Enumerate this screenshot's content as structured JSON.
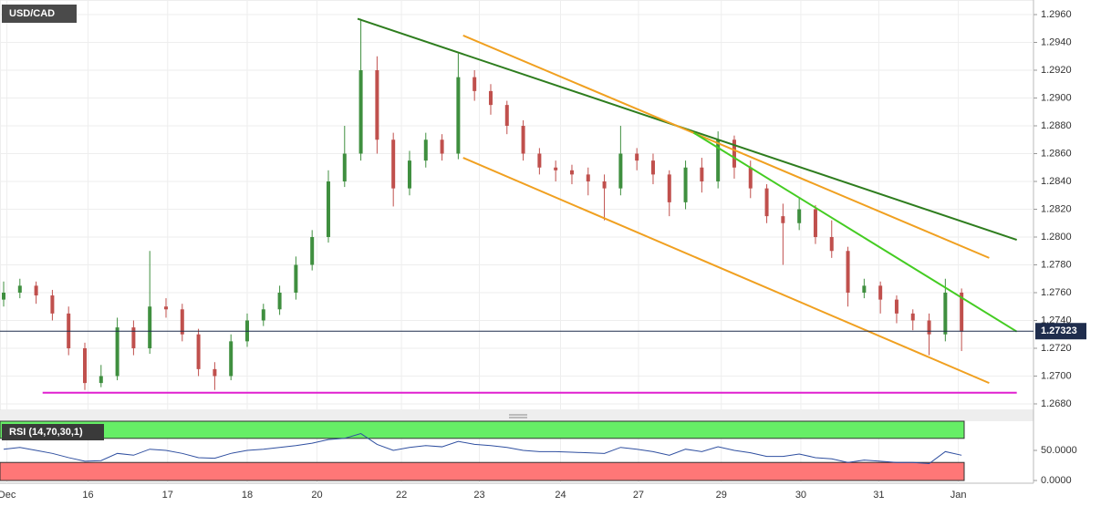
{
  "chart_data": {
    "type": "candlestick",
    "title": "USD/CAD",
    "xlim": [
      -0.225,
      63.43
    ],
    "xticks": [
      {
        "value": 0.2,
        "label": "Dec"
      },
      {
        "value": 5.2,
        "label": "16"
      },
      {
        "value": 10.1,
        "label": "17"
      },
      {
        "value": 15,
        "label": "18"
      },
      {
        "value": 19.3,
        "label": "20"
      },
      {
        "value": 24.5,
        "label": "22"
      },
      {
        "value": 29.3,
        "label": "23"
      },
      {
        "value": 34.3,
        "label": "24"
      },
      {
        "value": 39.1,
        "label": "27"
      },
      {
        "value": 44.2,
        "label": "29"
      },
      {
        "value": 49.1,
        "label": "30"
      },
      {
        "value": 53.9,
        "label": "31"
      },
      {
        "value": 58.8,
        "label": "Jan"
      }
    ],
    "ylim": [
      1.26754,
      1.29705
    ],
    "yticks": [
      {
        "value": 1.268,
        "label": "1.2680"
      },
      {
        "value": 1.27,
        "label": "1.2700"
      },
      {
        "value": 1.272,
        "label": "1.2720"
      },
      {
        "value": 1.274,
        "label": "1.2740"
      },
      {
        "value": 1.276,
        "label": "1.2760"
      },
      {
        "value": 1.278,
        "label": "1.2780"
      },
      {
        "value": 1.28,
        "label": "1.2800"
      },
      {
        "value": 1.282,
        "label": "1.2820"
      },
      {
        "value": 1.284,
        "label": "1.2840"
      },
      {
        "value": 1.286,
        "label": "1.2860"
      },
      {
        "value": 1.288,
        "label": "1.2880"
      },
      {
        "value": 1.29,
        "label": "1.2900"
      },
      {
        "value": 1.292,
        "label": "1.2920"
      },
      {
        "value": 1.294,
        "label": "1.2940"
      },
      {
        "value": 1.296,
        "label": "1.2960"
      }
    ],
    "grid": true,
    "up_color": "#3f8f3f",
    "down_color": "#c0504d",
    "open": [
      1.2755,
      1.276,
      1.2765,
      1.2758,
      1.2745,
      1.272,
      1.2695,
      1.27,
      1.2735,
      1.272,
      1.275,
      1.2748,
      1.273,
      1.2705,
      1.27,
      1.2725,
      1.274,
      1.2748,
      1.276,
      1.278,
      1.28,
      1.284,
      1.286,
      1.292,
      1.287,
      1.2835,
      1.2855,
      1.287,
      1.286,
      1.2915,
      1.2905,
      1.2895,
      1.288,
      1.286,
      1.285,
      1.2848,
      1.2845,
      1.284,
      1.2835,
      1.286,
      1.2855,
      1.2845,
      1.2825,
      1.285,
      1.284,
      1.287,
      1.285,
      1.2835,
      1.2815,
      1.281,
      1.282,
      1.28,
      1.279,
      1.276,
      1.2765,
      1.2755,
      1.2745,
      1.274,
      1.273,
      1.276
    ],
    "high": [
      1.2768,
      1.277,
      1.2768,
      1.2762,
      1.275,
      1.2724,
      1.2708,
      1.2742,
      1.274,
      1.279,
      1.2756,
      1.2752,
      1.2734,
      1.271,
      1.273,
      1.2745,
      1.2752,
      1.2765,
      1.2786,
      1.2805,
      1.2848,
      1.288,
      1.2957,
      1.293,
      1.2875,
      1.2862,
      1.2875,
      1.2874,
      1.2932,
      1.292,
      1.291,
      1.2898,
      1.2884,
      1.2864,
      1.2855,
      1.2852,
      1.285,
      1.2845,
      1.288,
      1.2864,
      1.286,
      1.2848,
      1.2855,
      1.2857,
      1.2876,
      1.2873,
      1.2855,
      1.2838,
      1.2824,
      1.2828,
      1.2823,
      1.2812,
      1.2793,
      1.277,
      1.2768,
      1.2758,
      1.2748,
      1.2745,
      1.277,
      1.2763
    ],
    "low": [
      1.275,
      1.2756,
      1.2752,
      1.274,
      1.2715,
      1.269,
      1.2692,
      1.2697,
      1.2715,
      1.2716,
      1.2742,
      1.2725,
      1.27,
      1.269,
      1.2697,
      1.2721,
      1.2736,
      1.2744,
      1.2755,
      1.2776,
      1.2796,
      1.2836,
      1.2855,
      1.286,
      1.2822,
      1.283,
      1.285,
      1.2855,
      1.2856,
      1.2898,
      1.2888,
      1.2874,
      1.2855,
      1.2845,
      1.284,
      1.2838,
      1.283,
      1.2812,
      1.283,
      1.2848,
      1.2838,
      1.2815,
      1.282,
      1.2832,
      1.2835,
      1.2842,
      1.2828,
      1.281,
      1.278,
      1.2805,
      1.2795,
      1.2785,
      1.275,
      1.2756,
      1.2745,
      1.2738,
      1.2733,
      1.2715,
      1.2725,
      1.2718
    ],
    "close": [
      1.276,
      1.2765,
      1.2758,
      1.2745,
      1.272,
      1.2695,
      1.27,
      1.2735,
      1.272,
      1.275,
      1.2748,
      1.273,
      1.2705,
      1.27,
      1.2725,
      1.274,
      1.2748,
      1.276,
      1.278,
      1.28,
      1.284,
      1.286,
      1.292,
      1.287,
      1.2835,
      1.2855,
      1.287,
      1.286,
      1.2915,
      1.2905,
      1.2895,
      1.288,
      1.286,
      1.285,
      1.2848,
      1.2845,
      1.284,
      1.2835,
      1.286,
      1.2855,
      1.2845,
      1.2825,
      1.285,
      1.284,
      1.287,
      1.285,
      1.2835,
      1.2815,
      1.281,
      1.282,
      1.28,
      1.279,
      1.276,
      1.2765,
      1.2755,
      1.2745,
      1.274,
      1.273,
      1.276,
      1.2732
    ],
    "last_price": 1.27323,
    "last_price_label": "1.27323",
    "last_price_color": "#1f2d4d",
    "trendlines": [
      {
        "color": "#2e7d1e",
        "x": [
          21.8,
          62.4
        ],
        "y": [
          1.2957,
          1.2798
        ]
      },
      {
        "color": "#f0a020",
        "x": [
          28.3,
          60.7
        ],
        "y": [
          1.2945,
          1.2785
        ]
      },
      {
        "color": "#f0a020",
        "x": [
          28.3,
          60.7
        ],
        "y": [
          1.2857,
          1.2695
        ]
      },
      {
        "color": "#44cc22",
        "x": [
          42.5,
          62.4
        ],
        "y": [
          1.2875,
          1.2732
        ]
      },
      {
        "color": "#e020d0",
        "x": [
          2.4,
          62.4
        ],
        "y": [
          1.2688,
          1.2688
        ]
      }
    ],
    "rsi": {
      "label": "RSI (14,70,30,1)",
      "overbought": 70,
      "oversold": 30,
      "color": "#2f4fa0",
      "ylim": [
        -4.5,
        98.5
      ],
      "yticks": [
        {
          "value": 50,
          "label": "50.0000"
        },
        {
          "value": 0,
          "label": "0.0000"
        }
      ],
      "values": [
        52,
        55,
        50,
        45,
        38,
        32,
        33,
        45,
        42,
        52,
        50,
        45,
        38,
        37,
        45,
        50,
        52,
        55,
        58,
        62,
        68,
        70,
        78,
        60,
        50,
        55,
        58,
        56,
        65,
        60,
        58,
        55,
        50,
        48,
        48,
        47,
        46,
        45,
        55,
        52,
        48,
        42,
        52,
        48,
        56,
        50,
        46,
        40,
        40,
        44,
        38,
        36,
        30,
        34,
        32,
        30,
        30,
        28,
        48,
        42
      ]
    }
  }
}
